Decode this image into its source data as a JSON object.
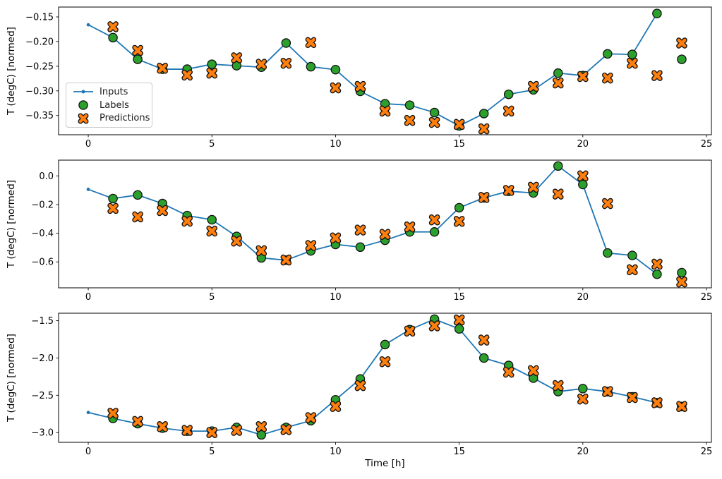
{
  "figure": {
    "xlabel": "Time [h]",
    "ylabel": "T (degC) [normed]",
    "background": "#ffffff",
    "colors": {
      "inputs": "#1f77b4",
      "labels": "#2ca02c",
      "predictions": "#ff7f0e",
      "marker_edge": "#111111",
      "spine": "#000000",
      "text": "#000000"
    },
    "legend": {
      "items": [
        {
          "label": "Inputs",
          "icon": "line-with-dot-icon"
        },
        {
          "label": "Labels",
          "icon": "green-circle-icon"
        },
        {
          "label": "Predictions",
          "icon": "orange-x-icon"
        }
      ]
    }
  },
  "chart_data": [
    {
      "type": "line",
      "ylabel": "T (degC) [normed]",
      "xlim": [
        -1.2,
        25.2
      ],
      "ylim": [
        -0.389,
        -0.13
      ],
      "xticks": [
        0,
        5,
        10,
        15,
        20,
        25
      ],
      "xtick_labels": [
        "0",
        "5",
        "10",
        "15",
        "20",
        "25"
      ],
      "yticks": [
        -0.15,
        -0.2,
        -0.25,
        -0.3,
        -0.35
      ],
      "ytick_labels": [
        "−0.15",
        "−0.20",
        "−0.25",
        "−0.30",
        "−0.35"
      ],
      "series": [
        {
          "name": "Inputs",
          "kind": "line",
          "color": "#1f77b4",
          "x": [
            0,
            1,
            2,
            3,
            4,
            5,
            6,
            7,
            8,
            9,
            10,
            11,
            12,
            13,
            14,
            15,
            16,
            17,
            18,
            19,
            20,
            21,
            22,
            23
          ],
          "y": [
            -0.166,
            -0.192,
            -0.236,
            -0.256,
            -0.256,
            -0.246,
            -0.249,
            -0.252,
            -0.203,
            -0.251,
            -0.257,
            -0.301,
            -0.326,
            -0.329,
            -0.344,
            -0.371,
            -0.346,
            -0.307,
            -0.298,
            -0.264,
            -0.269,
            -0.225,
            -0.226,
            -0.143
          ]
        },
        {
          "name": "Labels",
          "kind": "scatter-circle",
          "color": "#2ca02c",
          "x": [
            1,
            2,
            3,
            4,
            5,
            6,
            7,
            8,
            9,
            10,
            11,
            12,
            13,
            14,
            15,
            16,
            17,
            18,
            19,
            20,
            21,
            22,
            23,
            24
          ],
          "y": [
            -0.192,
            -0.236,
            -0.256,
            -0.256,
            -0.246,
            -0.249,
            -0.252,
            -0.203,
            -0.251,
            -0.257,
            -0.301,
            -0.326,
            -0.329,
            -0.344,
            -0.371,
            -0.346,
            -0.307,
            -0.298,
            -0.264,
            -0.269,
            -0.225,
            -0.226,
            -0.143,
            -0.236
          ]
        },
        {
          "name": "Predictions",
          "kind": "scatter-x",
          "color": "#ff7f0e",
          "x": [
            1,
            2,
            3,
            4,
            5,
            6,
            7,
            8,
            9,
            10,
            11,
            12,
            13,
            14,
            15,
            16,
            17,
            18,
            19,
            20,
            21,
            22,
            23,
            24
          ],
          "y": [
            -0.17,
            -0.218,
            -0.254,
            -0.268,
            -0.264,
            -0.233,
            -0.246,
            -0.244,
            -0.202,
            -0.294,
            -0.291,
            -0.341,
            -0.36,
            -0.364,
            -0.368,
            -0.377,
            -0.341,
            -0.291,
            -0.284,
            -0.271,
            -0.274,
            -0.244,
            -0.269,
            -0.203
          ]
        }
      ]
    },
    {
      "type": "line",
      "ylabel": "T (degC) [normed]",
      "xlim": [
        -1.2,
        25.2
      ],
      "ylim": [
        -0.781,
        0.11
      ],
      "xticks": [
        0,
        5,
        10,
        15,
        20,
        25
      ],
      "xtick_labels": [
        "0",
        "5",
        "10",
        "15",
        "20",
        "25"
      ],
      "yticks": [
        0.0,
        -0.2,
        -0.4,
        -0.6
      ],
      "ytick_labels": [
        "0.0",
        "−0.2",
        "−0.4",
        "−0.6"
      ],
      "series": [
        {
          "name": "Inputs",
          "kind": "line",
          "color": "#1f77b4",
          "x": [
            0,
            1,
            2,
            3,
            4,
            5,
            6,
            7,
            8,
            9,
            10,
            11,
            12,
            13,
            14,
            15,
            16,
            17,
            18,
            19,
            20,
            21,
            22,
            23
          ],
          "y": [
            -0.094,
            -0.158,
            -0.133,
            -0.193,
            -0.277,
            -0.306,
            -0.422,
            -0.572,
            -0.588,
            -0.523,
            -0.478,
            -0.497,
            -0.449,
            -0.391,
            -0.391,
            -0.222,
            -0.153,
            -0.107,
            -0.119,
            0.069,
            -0.06,
            -0.538,
            -0.555,
            -0.686
          ]
        },
        {
          "name": "Labels",
          "kind": "scatter-circle",
          "color": "#2ca02c",
          "x": [
            1,
            2,
            3,
            4,
            5,
            6,
            7,
            8,
            9,
            10,
            11,
            12,
            13,
            14,
            15,
            16,
            17,
            18,
            19,
            20,
            21,
            22,
            23,
            24
          ],
          "y": [
            -0.158,
            -0.133,
            -0.193,
            -0.277,
            -0.306,
            -0.422,
            -0.572,
            -0.588,
            -0.523,
            -0.478,
            -0.497,
            -0.449,
            -0.391,
            -0.391,
            -0.222,
            -0.153,
            -0.107,
            -0.119,
            0.069,
            -0.06,
            -0.538,
            -0.555,
            -0.686,
            -0.675
          ]
        },
        {
          "name": "Predictions",
          "kind": "scatter-x",
          "color": "#ff7f0e",
          "x": [
            1,
            2,
            3,
            4,
            5,
            6,
            7,
            8,
            9,
            10,
            11,
            12,
            13,
            14,
            15,
            16,
            17,
            18,
            19,
            20,
            21,
            22,
            23,
            24
          ],
          "y": [
            -0.227,
            -0.286,
            -0.242,
            -0.316,
            -0.385,
            -0.455,
            -0.522,
            -0.587,
            -0.486,
            -0.433,
            -0.378,
            -0.408,
            -0.356,
            -0.307,
            -0.317,
            -0.15,
            -0.101,
            -0.079,
            -0.127,
            0.0,
            -0.193,
            -0.655,
            -0.616,
            -0.74
          ]
        }
      ]
    },
    {
      "type": "line",
      "ylabel": "T (degC) [normed]",
      "xlabel": "Time [h]",
      "xlim": [
        -1.2,
        25.2
      ],
      "ylim": [
        -3.13,
        -1.4
      ],
      "xticks": [
        0,
        5,
        10,
        15,
        20,
        25
      ],
      "xtick_labels": [
        "0",
        "5",
        "10",
        "15",
        "20",
        "25"
      ],
      "yticks": [
        -1.5,
        -2.0,
        -2.5,
        -3.0
      ],
      "ytick_labels": [
        "−1.5",
        "−2.0",
        "−2.5",
        "−3.0"
      ],
      "series": [
        {
          "name": "Inputs",
          "kind": "line",
          "color": "#1f77b4",
          "x": [
            0,
            1,
            2,
            3,
            4,
            5,
            6,
            7,
            8,
            9,
            10,
            11,
            12,
            13,
            14,
            15,
            16,
            17,
            18,
            19,
            20,
            21,
            22,
            23
          ],
          "y": [
            -2.73,
            -2.81,
            -2.88,
            -2.94,
            -2.98,
            -2.98,
            -2.93,
            -3.03,
            -2.93,
            -2.84,
            -2.56,
            -2.28,
            -1.82,
            -1.62,
            -1.48,
            -1.61,
            -2.0,
            -2.1,
            -2.27,
            -2.45,
            -2.41,
            -2.45,
            -2.52,
            -2.6
          ]
        },
        {
          "name": "Labels",
          "kind": "scatter-circle",
          "color": "#2ca02c",
          "x": [
            1,
            2,
            3,
            4,
            5,
            6,
            7,
            8,
            9,
            10,
            11,
            12,
            13,
            14,
            15,
            16,
            17,
            18,
            19,
            20,
            21,
            22,
            23,
            24
          ],
          "y": [
            -2.81,
            -2.88,
            -2.94,
            -2.98,
            -2.98,
            -2.93,
            -3.03,
            -2.93,
            -2.84,
            -2.56,
            -2.28,
            -1.82,
            -1.62,
            -1.48,
            -1.61,
            -2.0,
            -2.1,
            -2.27,
            -2.45,
            -2.41,
            -2.45,
            -2.52,
            -2.6,
            -2.65
          ]
        },
        {
          "name": "Predictions",
          "kind": "scatter-x",
          "color": "#ff7f0e",
          "x": [
            1,
            2,
            3,
            4,
            5,
            6,
            7,
            8,
            9,
            10,
            11,
            12,
            13,
            14,
            15,
            16,
            17,
            18,
            19,
            20,
            21,
            22,
            23,
            24
          ],
          "y": [
            -2.74,
            -2.85,
            -2.92,
            -2.97,
            -3.0,
            -2.97,
            -2.92,
            -2.96,
            -2.8,
            -2.65,
            -2.37,
            -2.05,
            -1.64,
            -1.57,
            -1.49,
            -1.76,
            -2.19,
            -2.17,
            -2.37,
            -2.55,
            -2.45,
            -2.53,
            -2.6,
            -2.65
          ]
        }
      ]
    }
  ]
}
